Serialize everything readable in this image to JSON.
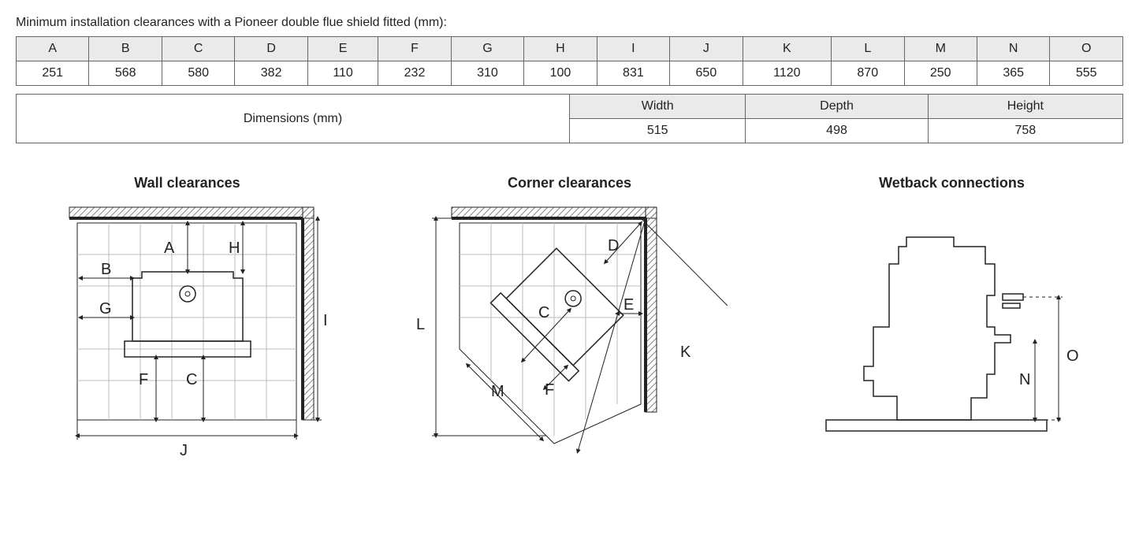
{
  "caption": "Minimum installation clearances with a Pioneer double flue shield fitted (mm):",
  "clearances": {
    "columns": [
      "A",
      "B",
      "C",
      "D",
      "E",
      "F",
      "G",
      "H",
      "I",
      "J",
      "K",
      "L",
      "M",
      "N",
      "O"
    ],
    "values": [
      "251",
      "568",
      "580",
      "382",
      "110",
      "232",
      "310",
      "100",
      "831",
      "650",
      "1120",
      "870",
      "250",
      "365",
      "555"
    ]
  },
  "dimensions": {
    "label": "Dimensions (mm)",
    "headers": [
      "Width",
      "Depth",
      "Height"
    ],
    "values": [
      "515",
      "498",
      "758"
    ]
  },
  "diagrams": {
    "wall": {
      "title": "Wall clearances",
      "labels": {
        "A": "A",
        "B": "B",
        "C": "C",
        "F": "F",
        "G": "G",
        "H": "H",
        "I": "I",
        "J": "J"
      }
    },
    "corner": {
      "title": "Corner clearances",
      "labels": {
        "C": "C",
        "D": "D",
        "E": "E",
        "F": "F",
        "K": "K",
        "L": "L",
        "M": "M"
      }
    },
    "wetback": {
      "title": "Wetback connections",
      "labels": {
        "N": "N",
        "O": "O"
      }
    }
  },
  "style": {
    "border_color": "#666666",
    "header_bg": "#eaeaea",
    "grid_color": "#bbbbbb",
    "thin_stroke": 1,
    "med_stroke": 1.5,
    "thick_stroke": 4,
    "label_fontsize": 20,
    "title_fontsize": 18,
    "caption_fontsize": 16
  }
}
